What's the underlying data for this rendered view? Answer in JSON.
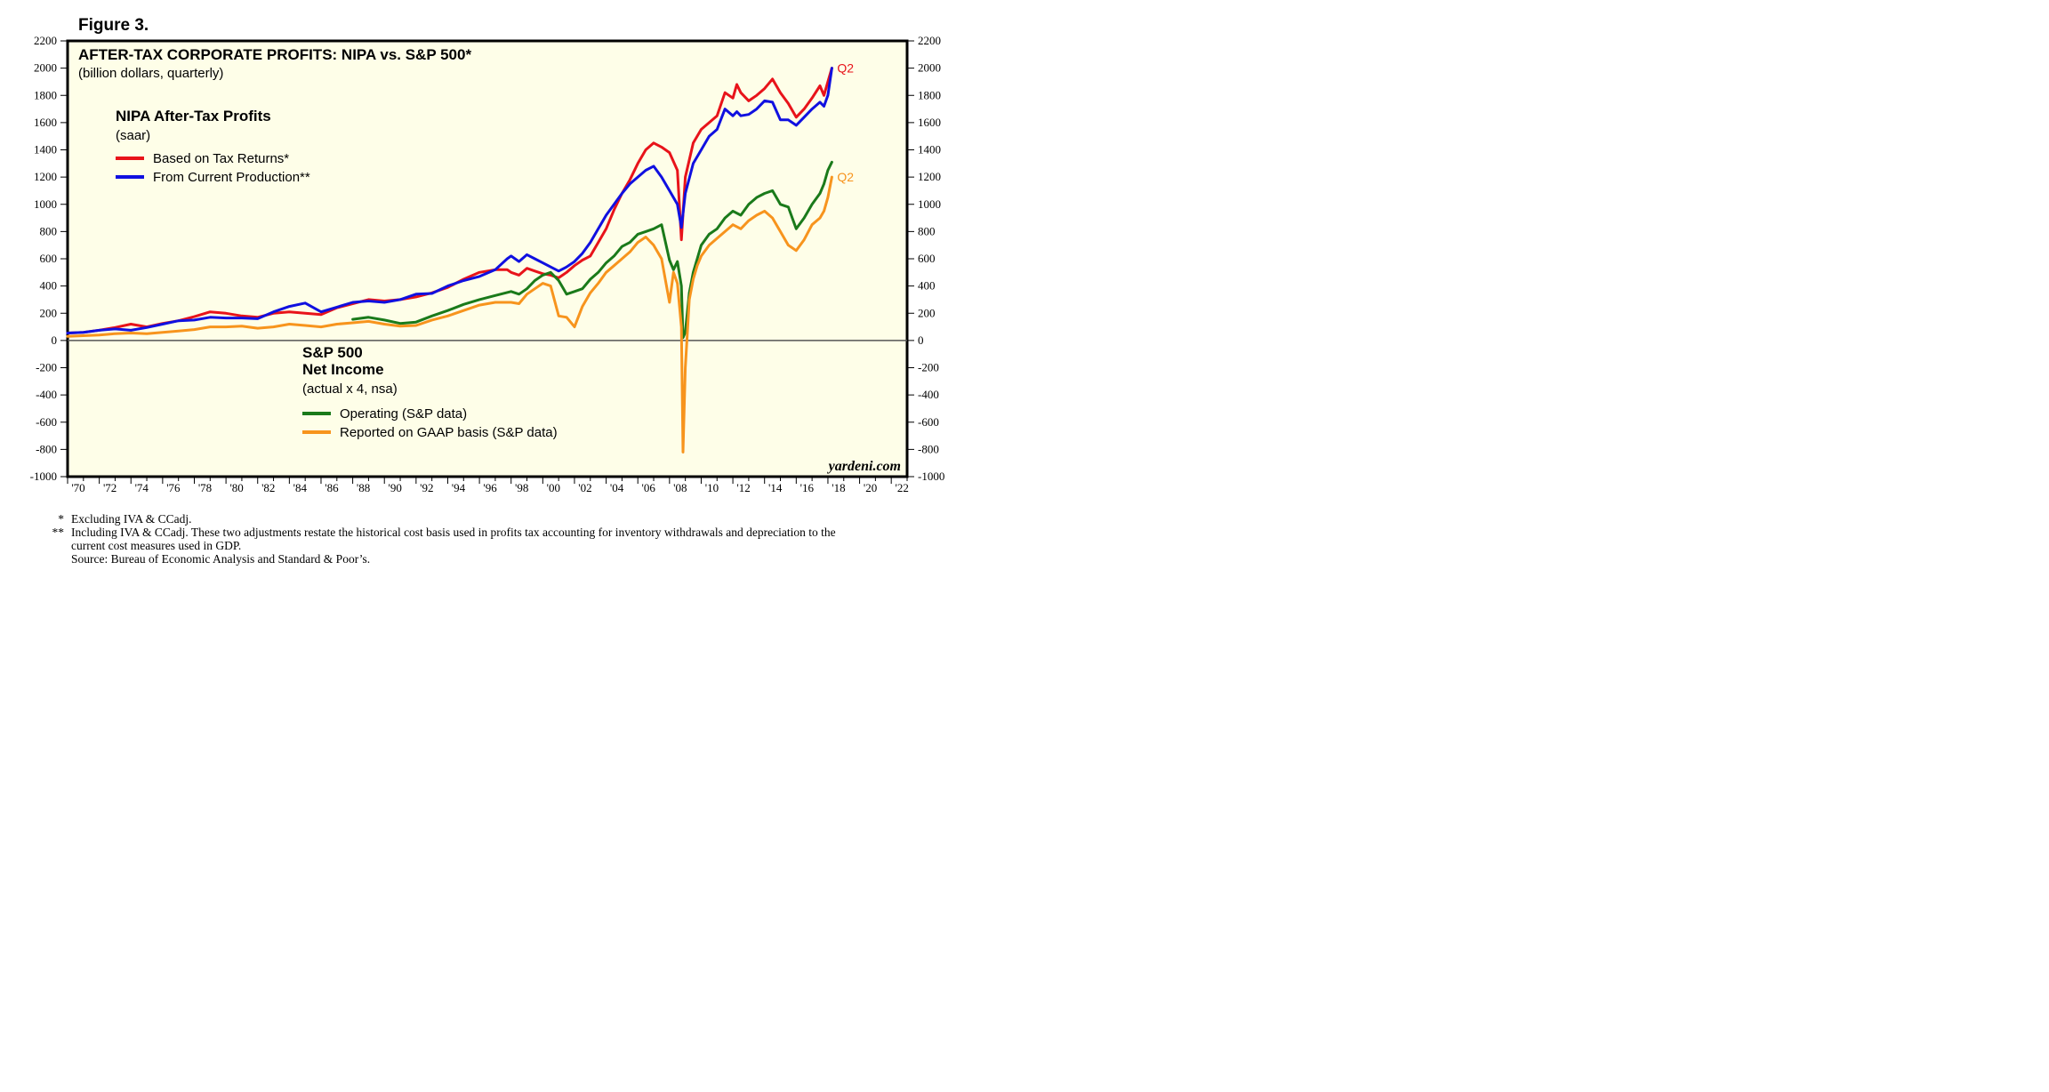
{
  "figure_label": "Figure 3.",
  "watermark": "yardeni.com",
  "footnotes": [
    {
      "mark": "*",
      "text": "Excluding IVA & CCadj."
    },
    {
      "mark": "**",
      "text": "Including IVA & CCadj. These two adjustments restate the historical cost basis used in profits tax accounting for inventory withdrawals and depreciation to the current cost measures used in GDP."
    },
    {
      "mark": "",
      "text": "Source: Bureau of Economic Analysis and Standard & Poor’s."
    }
  ],
  "chart_data": {
    "type": "line",
    "title": "AFTER-TAX CORPORATE PROFITS: NIPA vs. S&P 500*",
    "subtitle": "(billion dollars, quarterly)",
    "ylim": [
      -1000,
      2200
    ],
    "xlim": [
      1970,
      2023
    ],
    "y_ticks": [
      2200,
      2000,
      1800,
      1600,
      1400,
      1200,
      1000,
      800,
      600,
      400,
      200,
      0,
      -200,
      -400,
      -600,
      -800,
      -1000
    ],
    "x_tick_labels": [
      "70",
      "72",
      "74",
      "76",
      "78",
      "80",
      "82",
      "84",
      "86",
      "88",
      "90",
      "92",
      "94",
      "96",
      "98",
      "00",
      "02",
      "04",
      "06",
      "08",
      "10",
      "12",
      "14",
      "16",
      "18",
      "20",
      "22"
    ],
    "zero_line": true,
    "grid": false,
    "legend_groups": [
      {
        "title": "NIPA After-Tax Profits",
        "subtitle": "(saar)",
        "entries": [
          "Based on Tax Returns*",
          "From Current Production**"
        ]
      },
      {
        "title": "S&P 500",
        "title2": "Net Income",
        "subtitle": "(actual x 4, nsa)",
        "entries": [
          "Operating (S&P data)",
          "Reported on GAAP basis (S&P data)"
        ]
      }
    ],
    "end_labels": [
      {
        "text": "Q2",
        "color": "#e8131a"
      },
      {
        "text": "Q2",
        "color": "#f7941d"
      }
    ],
    "series": [
      {
        "name": "Based on Tax Returns*",
        "color": "#e8131a",
        "x": [
          1970,
          1971,
          1972,
          1973,
          1974,
          1975,
          1976,
          1977,
          1978,
          1979,
          1980,
          1981,
          1982,
          1983,
          1984,
          1985,
          1986,
          1987,
          1988,
          1989,
          1990,
          1991,
          1992,
          1993,
          1994,
          1995,
          1996,
          1997,
          1997.75,
          1998,
          1998.5,
          1999,
          1999.5,
          2000,
          2000.5,
          2001,
          2001.5,
          2002,
          2002.5,
          2003,
          2003.5,
          2004,
          2004.5,
          2005,
          2005.5,
          2006,
          2006.5,
          2007,
          2007.5,
          2008,
          2008.5,
          2008.75,
          2009,
          2009.5,
          2010,
          2010.5,
          2011,
          2011.5,
          2012,
          2012.25,
          2012.5,
          2013,
          2013.5,
          2014,
          2014.5,
          2015,
          2015.5,
          2016,
          2016.5,
          2017,
          2017.5,
          2017.75,
          2018,
          2018.25
        ],
        "y": [
          55,
          60,
          75,
          95,
          120,
          100,
          125,
          145,
          175,
          210,
          200,
          180,
          170,
          200,
          210,
          200,
          190,
          240,
          270,
          300,
          290,
          300,
          320,
          350,
          390,
          450,
          500,
          520,
          520,
          500,
          480,
          530,
          510,
          490,
          480,
          460,
          500,
          550,
          590,
          620,
          720,
          820,
          960,
          1080,
          1180,
          1300,
          1400,
          1450,
          1420,
          1380,
          1250,
          740,
          1200,
          1450,
          1550,
          1600,
          1650,
          1820,
          1780,
          1880,
          1820,
          1760,
          1800,
          1850,
          1920,
          1820,
          1740,
          1640,
          1700,
          1780,
          1870,
          1800,
          1900,
          2000
        ]
      },
      {
        "name": "From Current Production**",
        "color": "#1010e0",
        "x": [
          1970,
          1971,
          1972,
          1973,
          1974,
          1975,
          1976,
          1977,
          1978,
          1979,
          1980,
          1981,
          1982,
          1983,
          1984,
          1985,
          1986,
          1987,
          1988,
          1989,
          1990,
          1991,
          1992,
          1993,
          1994,
          1995,
          1996,
          1997,
          1997.75,
          1998,
          1998.5,
          1999,
          1999.5,
          2000,
          2000.5,
          2001,
          2001.5,
          2002,
          2002.5,
          2003,
          2003.5,
          2004,
          2004.5,
          2005,
          2005.5,
          2006,
          2006.5,
          2007,
          2007.5,
          2008,
          2008.5,
          2008.75,
          2009,
          2009.5,
          2010,
          2010.5,
          2011,
          2011.5,
          2012,
          2012.25,
          2012.5,
          2013,
          2013.5,
          2014,
          2014.5,
          2015,
          2015.5,
          2016,
          2016.5,
          2017,
          2017.5,
          2017.75,
          2018,
          2018.25
        ],
        "y": [
          55,
          60,
          75,
          85,
          75,
          95,
          120,
          145,
          150,
          170,
          165,
          165,
          160,
          210,
          250,
          275,
          210,
          245,
          280,
          290,
          280,
          300,
          340,
          345,
          400,
          440,
          470,
          520,
          600,
          620,
          580,
          630,
          600,
          570,
          540,
          510,
          540,
          580,
          640,
          720,
          820,
          920,
          1000,
          1080,
          1150,
          1200,
          1250,
          1280,
          1200,
          1100,
          1000,
          830,
          1080,
          1300,
          1400,
          1500,
          1550,
          1700,
          1650,
          1680,
          1650,
          1660,
          1700,
          1760,
          1750,
          1620,
          1620,
          1580,
          1640,
          1700,
          1750,
          1720,
          1800,
          2000
        ]
      },
      {
        "name": "Operating (S&P data)",
        "color": "#1a7a1a",
        "x": [
          1988,
          1989,
          1990,
          1991,
          1992,
          1993,
          1994,
          1995,
          1996,
          1997,
          1998,
          1998.5,
          1999,
          1999.5,
          2000,
          2000.5,
          2001,
          2001.5,
          2002,
          2002.5,
          2003,
          2003.5,
          2004,
          2004.5,
          2005,
          2005.5,
          2006,
          2006.5,
          2007,
          2007.5,
          2008,
          2008.25,
          2008.5,
          2008.75,
          2008.85,
          2009,
          2009.25,
          2009.5,
          2009.75,
          2010,
          2010.5,
          2011,
          2011.5,
          2012,
          2012.5,
          2013,
          2013.5,
          2014,
          2014.5,
          2015,
          2015.5,
          2016,
          2016.5,
          2017,
          2017.5,
          2017.75,
          2018,
          2018.25
        ],
        "y": [
          155,
          170,
          150,
          125,
          135,
          180,
          220,
          265,
          300,
          330,
          360,
          340,
          380,
          440,
          480,
          500,
          440,
          340,
          360,
          380,
          450,
          500,
          570,
          620,
          690,
          720,
          780,
          800,
          820,
          850,
          590,
          520,
          580,
          400,
          20,
          60,
          350,
          500,
          600,
          700,
          780,
          820,
          900,
          950,
          920,
          1000,
          1050,
          1080,
          1100,
          1000,
          980,
          820,
          900,
          1000,
          1080,
          1150,
          1250,
          1310
        ]
      },
      {
        "name": "Reported on GAAP basis (S&P data)",
        "color": "#f7941d",
        "x": [
          1970,
          1971,
          1972,
          1973,
          1974,
          1975,
          1976,
          1977,
          1978,
          1979,
          1980,
          1981,
          1982,
          1983,
          1984,
          1985,
          1986,
          1987,
          1988,
          1989,
          1990,
          1991,
          1992,
          1993,
          1994,
          1995,
          1996,
          1997,
          1998,
          1998.5,
          1999,
          1999.5,
          2000,
          2000.5,
          2001,
          2001.5,
          2002,
          2002.5,
          2003,
          2003.5,
          2004,
          2004.5,
          2005,
          2005.5,
          2006,
          2006.5,
          2007,
          2007.5,
          2008,
          2008.25,
          2008.5,
          2008.75,
          2008.85,
          2009,
          2009.25,
          2009.5,
          2009.75,
          2010,
          2010.5,
          2011,
          2011.5,
          2012,
          2012.5,
          2013,
          2013.5,
          2014,
          2014.5,
          2015,
          2015.5,
          2016,
          2016.5,
          2017,
          2017.5,
          2017.75,
          2018,
          2018.25
        ],
        "y": [
          30,
          35,
          40,
          50,
          55,
          50,
          60,
          70,
          80,
          100,
          100,
          105,
          90,
          100,
          120,
          110,
          100,
          120,
          130,
          140,
          120,
          105,
          110,
          150,
          180,
          220,
          260,
          280,
          280,
          270,
          340,
          380,
          420,
          400,
          180,
          170,
          100,
          250,
          350,
          420,
          500,
          550,
          600,
          650,
          720,
          760,
          700,
          600,
          280,
          500,
          420,
          100,
          -820,
          -200,
          300,
          450,
          550,
          620,
          700,
          750,
          800,
          850,
          820,
          880,
          920,
          950,
          900,
          800,
          700,
          660,
          740,
          850,
          900,
          950,
          1050,
          1200
        ]
      }
    ]
  }
}
